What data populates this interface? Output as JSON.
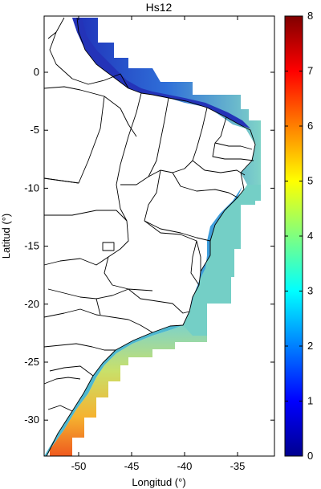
{
  "map": {
    "title": "Hs12",
    "xlabel": "Longitud (°)",
    "ylabel": "Latitud (°)",
    "x_ticks": [
      {
        "value": -50,
        "label": "-50"
      },
      {
        "value": -45,
        "label": "-45"
      },
      {
        "value": -40,
        "label": "-40"
      },
      {
        "value": -35,
        "label": "-35"
      }
    ],
    "y_ticks": [
      {
        "value": 0,
        "label": "0"
      },
      {
        "value": -5,
        "label": "-5"
      },
      {
        "value": -10,
        "label": "-10"
      },
      {
        "value": -15,
        "label": "-15"
      },
      {
        "value": -20,
        "label": "-20"
      },
      {
        "value": -25,
        "label": "-25"
      },
      {
        "value": -30,
        "label": "-30"
      }
    ],
    "colorbar": {
      "min": 0,
      "max": 8,
      "colormap": "jet",
      "ticks": [
        {
          "value": 0,
          "label": "0"
        },
        {
          "value": 1,
          "label": "1"
        },
        {
          "value": 2,
          "label": "2"
        },
        {
          "value": 3,
          "label": "3"
        },
        {
          "value": 4,
          "label": "4"
        },
        {
          "value": 5,
          "label": "5"
        },
        {
          "value": 6,
          "label": "6"
        },
        {
          "value": 7,
          "label": "7"
        },
        {
          "value": 8,
          "label": "8"
        }
      ]
    },
    "colors": {
      "coast_low": "#2a3fc9",
      "coast_mid": "#3ab7d6",
      "offshore": "#7fd3c8",
      "south_high": "#f5a623",
      "south_peak": "#ef5a1e",
      "boundary": "#000000"
    }
  }
}
